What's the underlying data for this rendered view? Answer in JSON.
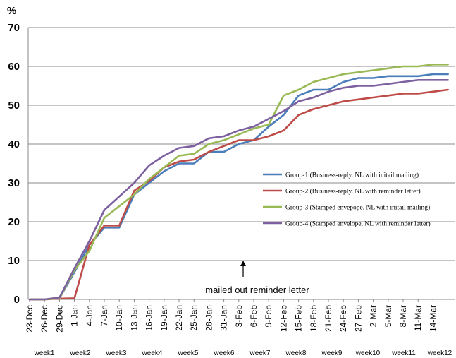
{
  "chart_data": {
    "type": "line",
    "ylabel": "%",
    "ylim": [
      0,
      70
    ],
    "yticks": [
      "0",
      "10",
      "20",
      "30",
      "40",
      "50",
      "60",
      "70"
    ],
    "x_tick_labels": [
      "23-Dec",
      "26-Dec",
      "29-Dec",
      "1-Jan",
      "4-Jan",
      "7-Jan",
      "10-Jan",
      "13-Jan",
      "16-Jan",
      "19-Jan",
      "22-Jan",
      "25-Jan",
      "28-Jan",
      "31-Jan",
      "3-Feb",
      "6-Feb",
      "9-Feb",
      "12-Feb",
      "15-Feb",
      "18-Feb",
      "21-Feb",
      "24-Feb",
      "27-Feb",
      "2-Mar",
      "5-Mar",
      "8-Mar",
      "11-Mar",
      "14-Mar"
    ],
    "week_labels": [
      "week1",
      "week2",
      "week3",
      "week4",
      "week5",
      "week6",
      "week7",
      "week8",
      "week9",
      "week10",
      "week11",
      "week12"
    ],
    "x": [
      "23-Dec",
      "26-Dec",
      "29-Dec",
      "1-Jan",
      "4-Jan",
      "7-Jan",
      "10-Jan",
      "13-Jan",
      "16-Jan",
      "19-Jan",
      "22-Jan",
      "25-Jan",
      "28-Jan",
      "31-Jan",
      "3-Feb",
      "6-Feb",
      "9-Feb",
      "12-Feb",
      "15-Feb",
      "18-Feb",
      "21-Feb",
      "24-Feb",
      "27-Feb",
      "2-Mar",
      "5-Mar",
      "8-Mar",
      "11-Mar",
      "14-Mar",
      "16-Mar"
    ],
    "series": [
      {
        "name": "Group-1 (Business-reply, NL with initail mailing)",
        "color": "#4a7ebb",
        "values": [
          0,
          0,
          0.3,
          7,
          14,
          18.5,
          18.5,
          27,
          30,
          33,
          35,
          35,
          38,
          38,
          40,
          41,
          44.5,
          47.5,
          52.5,
          54,
          54,
          56,
          57,
          57,
          57.5,
          57.5,
          57.5,
          58,
          58
        ]
      },
      {
        "name": "Group-2 (Business-reply, NL with reminder letter)",
        "color": "#be4b48",
        "values": [
          0,
          0,
          0.2,
          0.3,
          14,
          19,
          19,
          28,
          30.5,
          34,
          35.5,
          36,
          38,
          39.5,
          41,
          41,
          42,
          43.5,
          47.5,
          49,
          50,
          51,
          51.5,
          52,
          52.5,
          53,
          53,
          53.5,
          54
        ]
      },
      {
        "name": "Group-3 (Stamped envepope, NL with initail mailing)",
        "color": "#98b954",
        "values": [
          0,
          0,
          0.3,
          7.5,
          12.5,
          21,
          24,
          27,
          31,
          34,
          37,
          37.5,
          40,
          41,
          42.5,
          44,
          45,
          52.5,
          54,
          56,
          57,
          58,
          58.5,
          59,
          59.5,
          60,
          60,
          60.5,
          60.5
        ]
      },
      {
        "name": "Group-4 (Stamped envelope, NL with reminder letter)",
        "color": "#7d60a0",
        "values": [
          0,
          0,
          0.5,
          8,
          15,
          23,
          26.5,
          30,
          34.5,
          37,
          39,
          39.5,
          41.5,
          42,
          43.5,
          44.5,
          46.5,
          48.5,
          51,
          52,
          53.5,
          54.5,
          55,
          55,
          55.5,
          56,
          56.5,
          56.5,
          56.5
        ]
      }
    ],
    "annotation": "mailed out reminder letter",
    "grid": "horizontal",
    "legend_position": "right"
  }
}
